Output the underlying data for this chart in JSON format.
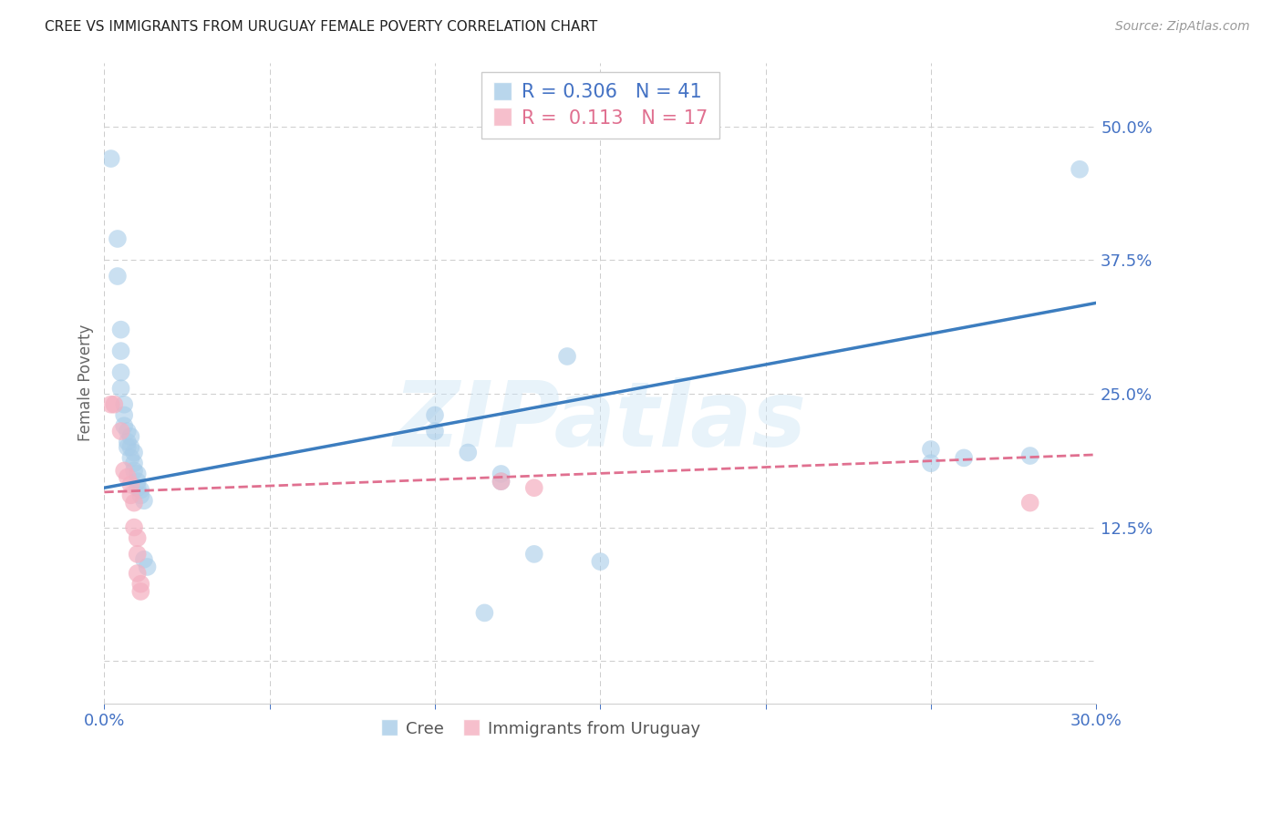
{
  "title": "CREE VS IMMIGRANTS FROM URUGUAY FEMALE POVERTY CORRELATION CHART",
  "source": "Source: ZipAtlas.com",
  "ylabel": "Female Poverty",
  "xlim": [
    0.0,
    0.3
  ],
  "ylim": [
    -0.04,
    0.56
  ],
  "yticks": [
    0.125,
    0.25,
    0.375,
    0.5
  ],
  "ytick_labels": [
    "12.5%",
    "25.0%",
    "37.5%",
    "50.0%"
  ],
  "xticks": [
    0.0,
    0.05,
    0.1,
    0.15,
    0.2,
    0.25,
    0.3
  ],
  "watermark": "ZIPatlas",
  "legend_line1_r": "R = 0.306",
  "legend_line1_n": "N = 41",
  "legend_line2_r": "R =  0.113",
  "legend_line2_n": "N = 17",
  "blue_color": "#a8cce8",
  "pink_color": "#f4afc0",
  "line_blue_color": "#3c7dbf",
  "line_pink_color": "#e07090",
  "blue_scatter": [
    [
      0.002,
      0.47
    ],
    [
      0.004,
      0.395
    ],
    [
      0.004,
      0.36
    ],
    [
      0.005,
      0.31
    ],
    [
      0.005,
      0.29
    ],
    [
      0.005,
      0.27
    ],
    [
      0.005,
      0.255
    ],
    [
      0.006,
      0.24
    ],
    [
      0.006,
      0.23
    ],
    [
      0.006,
      0.22
    ],
    [
      0.007,
      0.215
    ],
    [
      0.007,
      0.205
    ],
    [
      0.007,
      0.2
    ],
    [
      0.008,
      0.21
    ],
    [
      0.008,
      0.2
    ],
    [
      0.008,
      0.19
    ],
    [
      0.009,
      0.195
    ],
    [
      0.009,
      0.185
    ],
    [
      0.009,
      0.178
    ],
    [
      0.01,
      0.175
    ],
    [
      0.01,
      0.168
    ],
    [
      0.01,
      0.162
    ],
    [
      0.011,
      0.16
    ],
    [
      0.011,
      0.155
    ],
    [
      0.012,
      0.15
    ],
    [
      0.012,
      0.095
    ],
    [
      0.013,
      0.088
    ],
    [
      0.1,
      0.23
    ],
    [
      0.1,
      0.215
    ],
    [
      0.11,
      0.195
    ],
    [
      0.12,
      0.175
    ],
    [
      0.12,
      0.168
    ],
    [
      0.13,
      0.1
    ],
    [
      0.14,
      0.285
    ],
    [
      0.15,
      0.093
    ],
    [
      0.25,
      0.198
    ],
    [
      0.25,
      0.185
    ],
    [
      0.26,
      0.19
    ],
    [
      0.28,
      0.192
    ],
    [
      0.295,
      0.46
    ],
    [
      0.115,
      0.045
    ]
  ],
  "pink_scatter": [
    [
      0.002,
      0.24
    ],
    [
      0.003,
      0.24
    ],
    [
      0.005,
      0.215
    ],
    [
      0.006,
      0.178
    ],
    [
      0.007,
      0.172
    ],
    [
      0.008,
      0.165
    ],
    [
      0.008,
      0.155
    ],
    [
      0.009,
      0.148
    ],
    [
      0.009,
      0.125
    ],
    [
      0.01,
      0.115
    ],
    [
      0.01,
      0.1
    ],
    [
      0.01,
      0.082
    ],
    [
      0.011,
      0.072
    ],
    [
      0.011,
      0.065
    ],
    [
      0.12,
      0.168
    ],
    [
      0.13,
      0.162
    ],
    [
      0.28,
      0.148
    ]
  ],
  "blue_line_x": [
    0.0,
    0.3
  ],
  "blue_line_y": [
    0.162,
    0.335
  ],
  "pink_line_x": [
    0.0,
    0.3
  ],
  "pink_line_y": [
    0.158,
    0.193
  ],
  "axis_color": "#4472c4",
  "grid_color": "#cccccc",
  "background_color": "#ffffff"
}
